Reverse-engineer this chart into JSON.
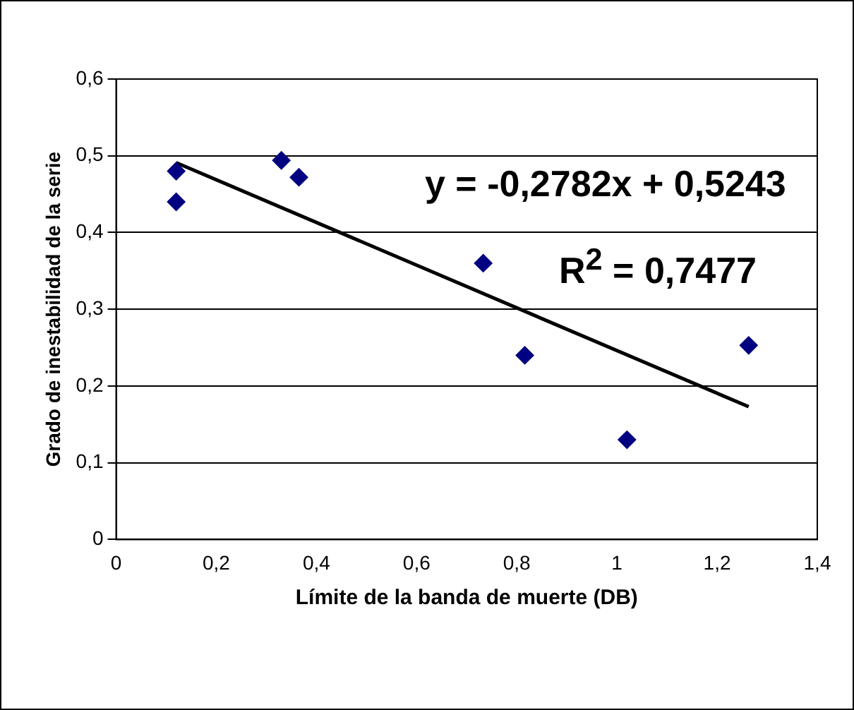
{
  "chart_data": {
    "type": "scatter",
    "xlabel": "Límite de la banda de muerte (DB)",
    "ylabel": "Grado de inestabilidad de la serie",
    "xlim": [
      0,
      1.4
    ],
    "xticks": [
      {
        "value": 0,
        "label": "0"
      },
      {
        "value": 0.2,
        "label": "0,2"
      },
      {
        "value": 0.4,
        "label": "0,4"
      },
      {
        "value": 0.6,
        "label": "0,6"
      },
      {
        "value": 0.8,
        "label": "0,8"
      },
      {
        "value": 1,
        "label": "1"
      },
      {
        "value": 1.2,
        "label": "1,2"
      },
      {
        "value": 1.4,
        "label": "1,4"
      }
    ],
    "ylim": [
      0,
      0.6
    ],
    "yticks": [
      {
        "value": 0,
        "label": "0"
      },
      {
        "value": 0.1,
        "label": "0,1"
      },
      {
        "value": 0.2,
        "label": "0,2"
      },
      {
        "value": 0.3,
        "label": "0,3"
      },
      {
        "value": 0.4,
        "label": "0,4"
      },
      {
        "value": 0.5,
        "label": "0,5"
      },
      {
        "value": 0.6,
        "label": "0,6"
      }
    ],
    "grid": "y",
    "legend": false,
    "series": [
      {
        "marker": "diamond",
        "color": "#000080",
        "x": [
          0.12,
          0.12,
          0.33,
          0.365,
          0.733,
          0.816,
          1.02,
          1.263
        ],
        "values": [
          0.48,
          0.44,
          0.494,
          0.472,
          0.36,
          0.24,
          0.13,
          0.253
        ]
      },
      {
        "type": "line",
        "marker": "none",
        "color": "#000000",
        "x": [
          0.12,
          1.263
        ],
        "values": [
          0.491,
          0.173
        ]
      }
    ],
    "annotations": [
      "y = -0,2782x + 0,5243",
      "R$^{2}$ = 0,7477"
    ]
  }
}
